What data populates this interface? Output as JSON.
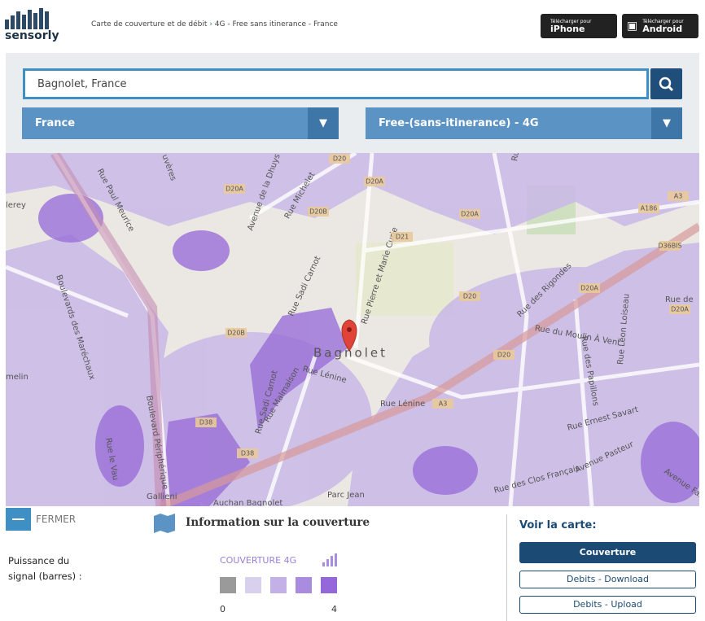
{
  "header": {
    "logo": "sensorly",
    "breadcrumb": [
      "Carte de couverture et de débit",
      "4G - Free sans itinerance - France"
    ],
    "apps": [
      {
        "small": "Télécharger pour",
        "label": "iPhone"
      },
      {
        "small": "Télécharger pour",
        "label": "Android"
      }
    ]
  },
  "search": {
    "value": "Bagnolet, France"
  },
  "selects": [
    "France",
    "Free-(sans-itinerance) - 4G"
  ],
  "map": {
    "labels": [
      "Rue Paul Meurice",
      "Boulevards des Maréchaux",
      "Avenue de la Dhuys",
      "Rue Michelet",
      "Rue Sadi Carnot",
      "Rue Pierre et Marie Curie",
      "Bagnolet",
      "Rue Lénine",
      "Rue Lénine",
      "Rue Malmaison",
      "Rue Sadi Carnot",
      "Rue des Rigondes",
      "Rue du Moulin À Vent",
      "Rue des Papillons",
      "Rue Léon Loiseau",
      "Rue Ernest Savart",
      "Avenue Pasteur",
      "Rue des Clos Français",
      "Auchan Bagnolet",
      "Gallieni",
      "Boulevard Périphérique",
      "Rue le Vau",
      "Parc Jean",
      "Rue Lo",
      "Rue de",
      "Avenue Faid",
      "melin",
      "lerey",
      "uvères"
    ],
    "shields": [
      "D20",
      "D20A",
      "D20A",
      "D20B",
      "D21",
      "D20A",
      "D20",
      "D20",
      "D20B",
      "D38",
      "D38",
      "A3",
      "A186",
      "D36BIS",
      "D20A",
      "D20A",
      "A3"
    ]
  },
  "panel": {
    "close": "FERMER",
    "title": "Information sur la couverture",
    "signal_label": "Puissance du signal (barres) :",
    "legend_title": "COUVERTURE 4G",
    "legend_colors": [
      "#9a9a9a",
      "#d8d0ec",
      "#c2b0e6",
      "#a98ce0",
      "#9467da"
    ],
    "scale_min": 0,
    "scale_max": 4
  },
  "view": {
    "title": "Voir la carte:",
    "buttons": [
      "Couverture",
      "Debits - Download",
      "Debits - Upload"
    ]
  }
}
